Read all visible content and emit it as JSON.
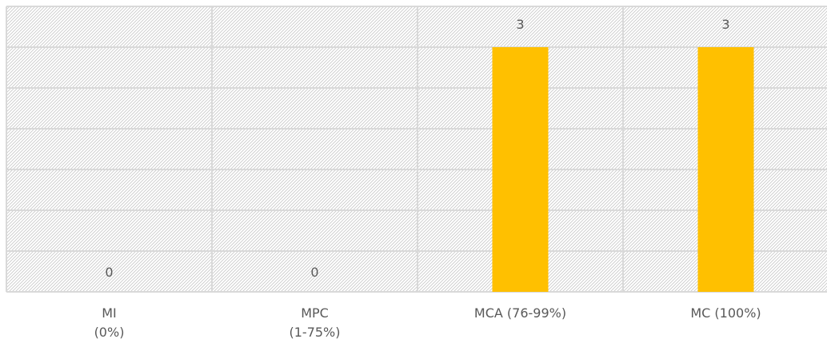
{
  "chart_data": {
    "type": "bar",
    "categories": [
      "MI\n(0%)",
      "MPC\n(1-75%)",
      "MCA (76-99%)",
      "MC (100%)"
    ],
    "values": [
      0,
      0,
      3,
      3
    ],
    "data_labels": [
      "0",
      "0",
      "3",
      "3"
    ],
    "title": "",
    "xlabel": "",
    "ylabel": "",
    "ylim": [
      0,
      3.5
    ],
    "grid": true,
    "legend": "none",
    "bar_color": "#FFC000",
    "background_pattern": "diagonal-hatch",
    "gridline_color": "#D9D9D9"
  }
}
